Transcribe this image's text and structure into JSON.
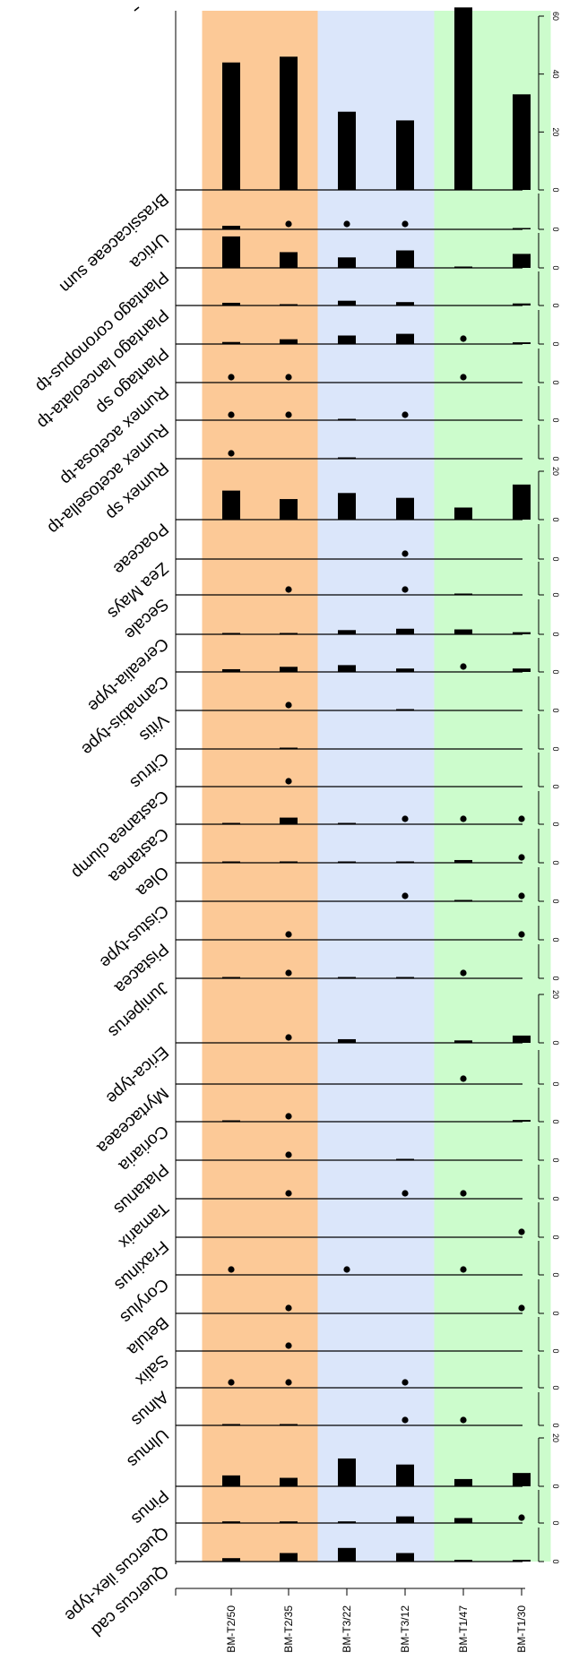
{
  "chart_data": {
    "type": "bar",
    "title": "",
    "samples": [
      "BM-T2/50",
      "BM-T2/35",
      "BM-T3/22",
      "BM-T3/12",
      "BM-T1/47",
      "BM-T1/30"
    ],
    "zones": [
      {
        "from": 0,
        "to": 1,
        "color": "#fcc997"
      },
      {
        "from": 2,
        "to": 3,
        "color": "#dbe6fa"
      },
      {
        "from": 4,
        "to": 5,
        "color": "#ccfccc"
      }
    ],
    "panels": [
      {
        "taxon": "Quercus cad",
        "max": 10,
        "ticks": [
          "0"
        ],
        "values": [
          1,
          2.5,
          4,
          2.5,
          0.5,
          0.5
        ],
        "presence": []
      },
      {
        "taxon": "Quercus ilex-type",
        "max": 10,
        "ticks": [
          "0"
        ],
        "values": [
          0.5,
          0.5,
          0.5,
          2,
          1.5,
          0
        ],
        "presence": [
          5
        ]
      },
      {
        "taxon": "Pinus",
        "max": 20,
        "ticks": [
          "0",
          "20"
        ],
        "values": [
          4.5,
          3.5,
          11.5,
          9,
          3,
          5.5
        ],
        "presence": []
      },
      {
        "taxon": "Ulmus",
        "max": 10,
        "ticks": [
          "0"
        ],
        "values": [
          0.2,
          0.2,
          0,
          0,
          0,
          0
        ],
        "presence": [
          3,
          4
        ]
      },
      {
        "taxon": "Alnus",
        "max": 10,
        "ticks": [
          "0"
        ],
        "values": [
          0,
          0,
          0,
          0,
          0,
          0
        ],
        "presence": [
          0,
          1,
          3
        ]
      },
      {
        "taxon": "Salix",
        "max": 10,
        "ticks": [
          "0"
        ],
        "values": [
          0,
          0,
          0,
          0,
          0,
          0
        ],
        "presence": [
          1
        ]
      },
      {
        "taxon": "Betula",
        "max": 10,
        "ticks": [
          "0"
        ],
        "values": [
          0,
          0,
          0,
          0,
          0,
          0
        ],
        "presence": [
          1,
          5
        ]
      },
      {
        "taxon": "Corylus",
        "max": 10,
        "ticks": [
          "0"
        ],
        "values": [
          0,
          0,
          0,
          0,
          0,
          0
        ],
        "presence": [
          0,
          2,
          4
        ]
      },
      {
        "taxon": "Fraxinus",
        "max": 10,
        "ticks": [
          "0"
        ],
        "values": [
          0,
          0,
          0,
          0,
          0,
          0
        ],
        "presence": [
          5
        ]
      },
      {
        "taxon": "Tamarix",
        "max": 10,
        "ticks": [
          "0"
        ],
        "values": [
          0,
          0,
          0,
          0,
          0,
          0
        ],
        "presence": [
          1,
          3,
          4
        ]
      },
      {
        "taxon": "Platanus",
        "max": 10,
        "ticks": [
          "0"
        ],
        "values": [
          0,
          0,
          0,
          0.2,
          0,
          0
        ],
        "presence": [
          1
        ]
      },
      {
        "taxon": "Coriaria",
        "max": 10,
        "ticks": [
          "0"
        ],
        "values": [
          0.2,
          0,
          0,
          0,
          0,
          0.5
        ],
        "presence": [
          1
        ]
      },
      {
        "taxon": "Myrtaceaea",
        "max": 10,
        "ticks": [
          "0"
        ],
        "values": [
          0,
          0,
          0,
          0,
          0,
          0
        ],
        "presence": [
          4
        ]
      },
      {
        "taxon": "Erica-type",
        "max": 20,
        "ticks": [
          "0",
          "20"
        ],
        "values": [
          0,
          0,
          1.5,
          0,
          1,
          3
        ],
        "presence": [
          1
        ]
      },
      {
        "taxon": "Juniperus",
        "max": 10,
        "ticks": [
          "0"
        ],
        "values": [
          0.2,
          0,
          0.2,
          0.3,
          0,
          0
        ],
        "presence": [
          1,
          4
        ]
      },
      {
        "taxon": "Pistacea",
        "max": 10,
        "ticks": [
          "0"
        ],
        "values": [
          0,
          0,
          0,
          0,
          0,
          0
        ],
        "presence": [
          1,
          5
        ]
      },
      {
        "taxon": "Cistus-type",
        "max": 10,
        "ticks": [
          "0"
        ],
        "values": [
          0,
          0,
          0,
          0,
          0.3,
          0
        ],
        "presence": [
          3,
          5
        ]
      },
      {
        "taxon": "Olea",
        "max": 10,
        "ticks": [
          "0"
        ],
        "values": [
          0.2,
          0.4,
          0.3,
          0.3,
          0.8,
          0
        ],
        "presence": [
          5
        ]
      },
      {
        "taxon": "Castanea",
        "max": 10,
        "ticks": [
          "0"
        ],
        "values": [
          0.2,
          2,
          0.2,
          0,
          0,
          0
        ],
        "presence": [
          3,
          4,
          5
        ]
      },
      {
        "taxon": "Castanea clump",
        "max": 10,
        "ticks": [
          "0"
        ],
        "values": [
          0,
          0,
          0,
          0,
          0,
          0
        ],
        "presence": [
          1
        ]
      },
      {
        "taxon": "Citrus",
        "max": 10,
        "ticks": [
          "0"
        ],
        "values": [
          0,
          0.2,
          0,
          0,
          0,
          0
        ],
        "presence": []
      },
      {
        "taxon": "Vitis",
        "max": 10,
        "ticks": [
          "0"
        ],
        "values": [
          0,
          0,
          0,
          0.2,
          0,
          0
        ],
        "presence": [
          1
        ]
      },
      {
        "taxon": "Cannabis-type",
        "max": 10,
        "ticks": [
          "0"
        ],
        "values": [
          0.8,
          1.5,
          2,
          1,
          0,
          1
        ],
        "presence": [
          4
        ]
      },
      {
        "taxon": "Cerealia-type",
        "max": 10,
        "ticks": [
          "0"
        ],
        "values": [
          0.2,
          0.2,
          1.2,
          1.6,
          1.4,
          0.6
        ],
        "presence": []
      },
      {
        "taxon": "Secale",
        "max": 10,
        "ticks": [
          "0"
        ],
        "values": [
          0,
          0,
          0,
          0,
          0.2,
          0
        ],
        "presence": [
          1,
          3
        ]
      },
      {
        "taxon": "Zea Mays",
        "max": 10,
        "ticks": [
          "0"
        ],
        "values": [
          0,
          0,
          0,
          0,
          0,
          0
        ],
        "presence": [
          3
        ]
      },
      {
        "taxon": "Poaceae",
        "max": 20,
        "ticks": [
          "0",
          "20"
        ],
        "values": [
          12,
          8.5,
          11,
          9,
          5,
          14.5
        ],
        "presence": []
      },
      {
        "taxon": "Rumex sp",
        "max": 10,
        "ticks": [
          "0"
        ],
        "values": [
          0,
          0,
          0.2,
          0,
          0,
          0
        ],
        "presence": [
          0
        ]
      },
      {
        "taxon": "Rumex acetosella-tp",
        "max": 10,
        "ticks": [
          "0"
        ],
        "values": [
          0,
          0,
          0.2,
          0,
          0,
          0
        ],
        "presence": [
          0,
          1,
          3
        ]
      },
      {
        "taxon": "Rumex acetosa-tp",
        "max": 10,
        "ticks": [
          "0"
        ],
        "values": [
          0,
          0,
          0,
          0,
          0,
          0
        ],
        "presence": [
          0,
          1,
          4
        ]
      },
      {
        "taxon": "Plantago sp",
        "max": 10,
        "ticks": [
          "0"
        ],
        "values": [
          0.6,
          1.4,
          2.5,
          3,
          0,
          0.5
        ],
        "presence": [
          4
        ]
      },
      {
        "taxon": "Plantago lanceolata-tp",
        "max": 10,
        "ticks": [
          "0"
        ],
        "values": [
          0.8,
          0.2,
          1.4,
          1,
          0,
          0.6
        ],
        "presence": []
      },
      {
        "taxon": "Plantago coronopus-tp",
        "max": 10,
        "ticks": [
          "0"
        ],
        "values": [
          9,
          4.5,
          3,
          5,
          0.3,
          4
        ],
        "presence": []
      },
      {
        "taxon": "Urtica",
        "max": 10,
        "ticks": [
          "0"
        ],
        "values": [
          1,
          0,
          0,
          0,
          0,
          0.3
        ],
        "presence": [
          1,
          2,
          3
        ]
      },
      {
        "taxon": "Brassicaceae sum",
        "max": 60,
        "ticks": [
          "0",
          "20",
          "40",
          "60"
        ],
        "values": [
          44,
          46,
          27,
          24,
          63,
          33
        ],
        "presence": []
      }
    ]
  }
}
